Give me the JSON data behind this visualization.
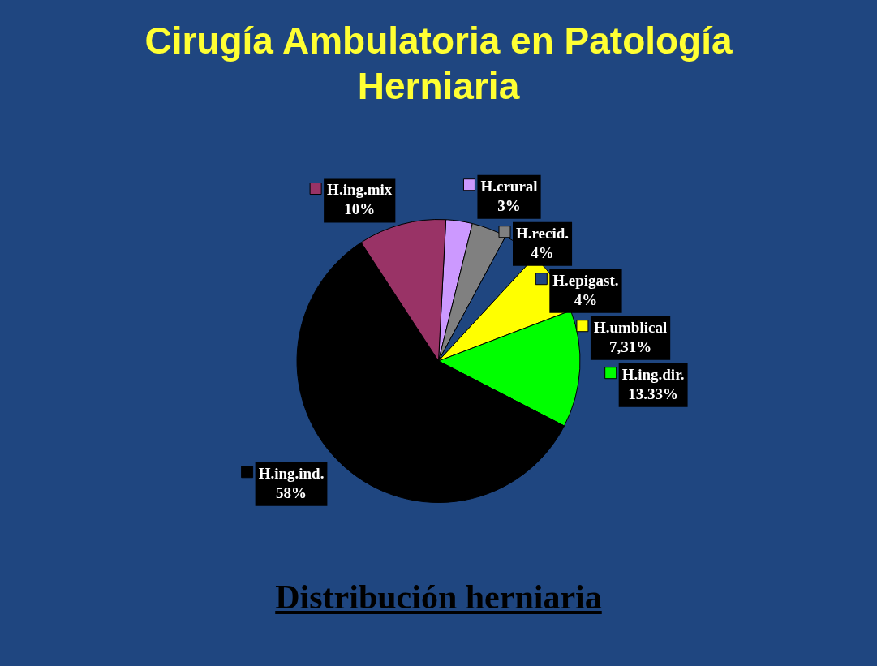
{
  "chart_data": {
    "type": "pie",
    "title": "Cirugía Ambulatoria en Patología Herniaria",
    "subtitle": "Distribución herniaria",
    "categories": [
      "H.crural",
      "H.recid.",
      "H.epigast.",
      "H.umblical",
      "H.ing.dir.",
      "H.ing.ind.",
      "H.ing.mix"
    ],
    "values": [
      3,
      4,
      4,
      7.31,
      13.33,
      58,
      10
    ],
    "value_labels": [
      "3%",
      "4%",
      "4%",
      "7,31%",
      "13.33%",
      "58%",
      "10%"
    ],
    "colors": [
      "#cc99ff",
      "#808080",
      "#1f4680",
      "#ffff00",
      "#00ff00",
      "#000000",
      "#993366"
    ],
    "legend": "right"
  }
}
